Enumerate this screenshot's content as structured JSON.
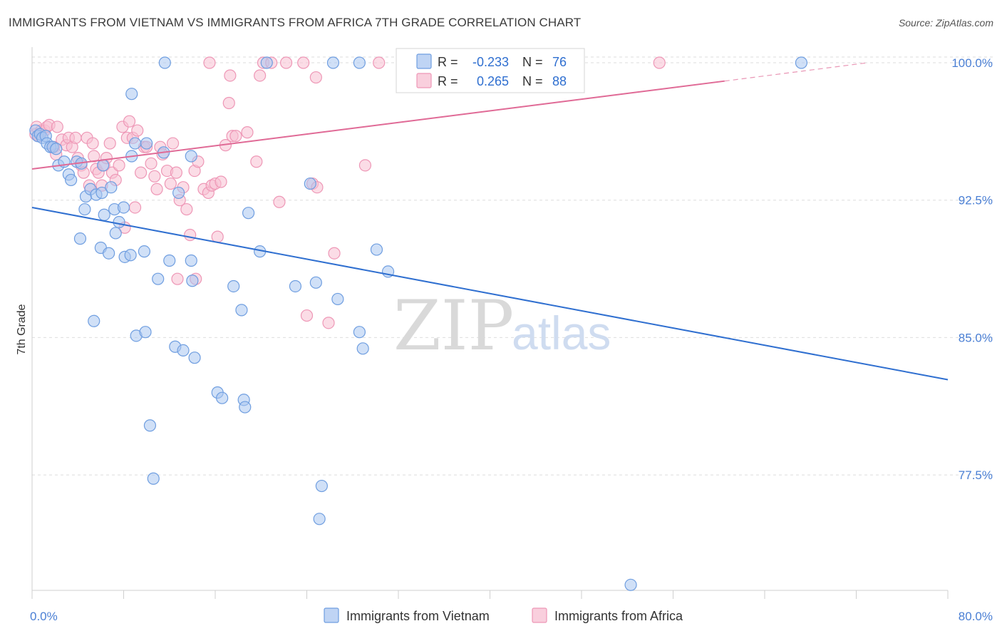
{
  "title": "IMMIGRANTS FROM VIETNAM VS IMMIGRANTS FROM AFRICA 7TH GRADE CORRELATION CHART",
  "source": "Source: ZipAtlas.com",
  "watermark": {
    "zip": "ZIP",
    "atlas": "atlas"
  },
  "colors": {
    "vietnam_fill": "#a9c6f0",
    "vietnam_stroke": "#6f9ee0",
    "vietnam_line": "#2f6fd0",
    "africa_fill": "#f7bfd2",
    "africa_stroke": "#ee97b6",
    "africa_line": "#e06a96",
    "grid": "#dedede",
    "tick_text": "#4a7fd4"
  },
  "legend": {
    "rows": [
      {
        "r_label": "R =",
        "r_value": "-0.233",
        "n_label": "N =",
        "n_value": "76"
      },
      {
        "r_label": "R =",
        "r_value": "0.265",
        "n_label": "N =",
        "n_value": "88"
      }
    ]
  },
  "chart_data": {
    "type": "scatter",
    "title": "IMMIGRANTS FROM VIETNAM VS IMMIGRANTS FROM AFRICA 7TH GRADE CORRELATION CHART",
    "xlabel": "",
    "ylabel": "7th Grade",
    "xlim": [
      0,
      80
    ],
    "ylim": [
      71.2,
      100.7
    ],
    "x_tick_labels": [
      "0.0%",
      "80.0%"
    ],
    "y_ticks": [
      77.5,
      85.0,
      92.5,
      100.0
    ],
    "y_tick_labels": [
      "77.5%",
      "85.0%",
      "92.5%",
      "100.0%"
    ],
    "grid": true,
    "legend_position": "top-center",
    "series": [
      {
        "name": "Immigrants from Vietnam",
        "R": -0.233,
        "N": 76,
        "trend": {
          "x0": 0,
          "y0": 92.1,
          "x1": 80,
          "y1": 82.7
        },
        "points": [
          [
            0.3,
            96.3
          ],
          [
            0.5,
            96.0
          ],
          [
            0.7,
            96.1
          ],
          [
            0.9,
            95.9
          ],
          [
            1.2,
            96.0
          ],
          [
            1.3,
            95.6
          ],
          [
            1.6,
            95.4
          ],
          [
            1.8,
            95.4
          ],
          [
            2.1,
            95.3
          ],
          [
            2.3,
            94.4
          ],
          [
            2.8,
            94.6
          ],
          [
            3.2,
            93.9
          ],
          [
            3.4,
            93.6
          ],
          [
            3.9,
            94.6
          ],
          [
            4.3,
            94.5
          ],
          [
            4.6,
            92.0
          ],
          [
            4.7,
            92.7
          ],
          [
            5.1,
            93.1
          ],
          [
            5.6,
            92.8
          ],
          [
            6.1,
            92.9
          ],
          [
            6.2,
            94.4
          ],
          [
            6.3,
            91.7
          ],
          [
            6.9,
            93.2
          ],
          [
            7.2,
            92.0
          ],
          [
            7.3,
            90.7
          ],
          [
            7.6,
            91.3
          ],
          [
            8.0,
            92.1
          ],
          [
            8.7,
            94.9
          ],
          [
            9.0,
            95.6
          ],
          [
            10.0,
            95.6
          ],
          [
            11.5,
            95.1
          ],
          [
            11.6,
            100.0
          ],
          [
            12.8,
            92.9
          ],
          [
            13.9,
            94.9
          ],
          [
            8.7,
            98.3
          ],
          [
            4.2,
            90.4
          ],
          [
            6.0,
            89.9
          ],
          [
            6.7,
            89.6
          ],
          [
            8.1,
            89.4
          ],
          [
            8.6,
            89.5
          ],
          [
            9.8,
            89.7
          ],
          [
            11.0,
            88.2
          ],
          [
            12.0,
            89.2
          ],
          [
            13.9,
            89.2
          ],
          [
            14.0,
            88.1
          ],
          [
            17.6,
            87.8
          ],
          [
            18.3,
            86.5
          ],
          [
            18.9,
            91.8
          ],
          [
            19.9,
            89.7
          ],
          [
            20.5,
            100.0
          ],
          [
            23.0,
            87.8
          ],
          [
            24.3,
            93.4
          ],
          [
            24.8,
            88.0
          ],
          [
            26.3,
            100.0
          ],
          [
            26.7,
            87.1
          ],
          [
            28.6,
            100.0
          ],
          [
            28.6,
            85.3
          ],
          [
            28.9,
            84.4
          ],
          [
            30.1,
            89.8
          ],
          [
            31.1,
            88.6
          ],
          [
            5.4,
            85.9
          ],
          [
            9.1,
            85.1
          ],
          [
            9.9,
            85.3
          ],
          [
            12.5,
            84.5
          ],
          [
            13.2,
            84.3
          ],
          [
            14.2,
            83.9
          ],
          [
            16.2,
            82.0
          ],
          [
            16.6,
            81.7
          ],
          [
            18.5,
            81.6
          ],
          [
            18.6,
            81.2
          ],
          [
            10.3,
            80.2
          ],
          [
            10.6,
            77.3
          ],
          [
            25.3,
            76.9
          ],
          [
            25.1,
            75.1
          ],
          [
            52.3,
            71.5
          ],
          [
            67.2,
            100.0
          ]
        ]
      },
      {
        "name": "Immigrants from Africa",
        "R": 0.265,
        "N": 88,
        "trend": {
          "x0": 0,
          "y0": 94.2,
          "x1": 60.5,
          "y1": 99.0,
          "dash_x1": 73,
          "dash_y1": 100.0
        },
        "points": [
          [
            0.3,
            96.1
          ],
          [
            0.4,
            96.5
          ],
          [
            0.6,
            96.0
          ],
          [
            0.8,
            96.3
          ],
          [
            1.1,
            96.3
          ],
          [
            1.3,
            96.5
          ],
          [
            1.5,
            96.6
          ],
          [
            1.9,
            95.4
          ],
          [
            2.1,
            95.0
          ],
          [
            2.2,
            96.5
          ],
          [
            2.6,
            95.8
          ],
          [
            3.0,
            95.5
          ],
          [
            3.2,
            95.9
          ],
          [
            3.5,
            95.4
          ],
          [
            3.8,
            95.9
          ],
          [
            4.0,
            94.8
          ],
          [
            4.3,
            94.4
          ],
          [
            4.5,
            94.0
          ],
          [
            4.8,
            95.9
          ],
          [
            5.0,
            93.3
          ],
          [
            5.3,
            95.6
          ],
          [
            5.4,
            94.9
          ],
          [
            5.6,
            94.2
          ],
          [
            5.8,
            94.0
          ],
          [
            6.1,
            93.3
          ],
          [
            6.3,
            94.4
          ],
          [
            6.5,
            94.8
          ],
          [
            6.8,
            95.6
          ],
          [
            7.0,
            94.0
          ],
          [
            7.3,
            93.6
          ],
          [
            7.6,
            94.4
          ],
          [
            7.9,
            96.5
          ],
          [
            8.1,
            91.0
          ],
          [
            8.3,
            95.9
          ],
          [
            8.5,
            96.8
          ],
          [
            8.8,
            95.9
          ],
          [
            9.0,
            92.1
          ],
          [
            9.2,
            96.3
          ],
          [
            9.5,
            94.0
          ],
          [
            9.8,
            95.4
          ],
          [
            10.0,
            95.4
          ],
          [
            10.4,
            94.5
          ],
          [
            10.7,
            93.8
          ],
          [
            10.9,
            93.1
          ],
          [
            11.2,
            95.4
          ],
          [
            11.4,
            95.0
          ],
          [
            11.8,
            94.1
          ],
          [
            12.1,
            93.4
          ],
          [
            12.3,
            95.6
          ],
          [
            12.6,
            94.0
          ],
          [
            12.9,
            92.5
          ],
          [
            13.2,
            93.2
          ],
          [
            13.5,
            92.0
          ],
          [
            13.8,
            90.6
          ],
          [
            14.2,
            94.1
          ],
          [
            14.5,
            94.6
          ],
          [
            15.0,
            93.1
          ],
          [
            15.4,
            92.9
          ],
          [
            15.7,
            93.3
          ],
          [
            16.0,
            93.4
          ],
          [
            16.2,
            90.5
          ],
          [
            16.5,
            93.5
          ],
          [
            16.9,
            95.5
          ],
          [
            17.2,
            97.8
          ],
          [
            17.5,
            96.0
          ],
          [
            17.8,
            96.0
          ],
          [
            18.8,
            96.2
          ],
          [
            14.3,
            88.2
          ],
          [
            12.7,
            88.2
          ],
          [
            15.5,
            100.0
          ],
          [
            17.3,
            99.3
          ],
          [
            19.6,
            94.6
          ],
          [
            19.9,
            99.3
          ],
          [
            20.2,
            100.0
          ],
          [
            20.9,
            100.0
          ],
          [
            21.6,
            92.4
          ],
          [
            22.2,
            100.0
          ],
          [
            23.7,
            100.0
          ],
          [
            24.5,
            93.4
          ],
          [
            24.8,
            99.2
          ],
          [
            24.9,
            93.2
          ],
          [
            24.0,
            86.2
          ],
          [
            25.9,
            85.8
          ],
          [
            26.4,
            89.6
          ],
          [
            29.1,
            94.4
          ],
          [
            30.3,
            100.0
          ],
          [
            32.7,
            100.0
          ],
          [
            54.8,
            100.0
          ]
        ]
      }
    ]
  }
}
